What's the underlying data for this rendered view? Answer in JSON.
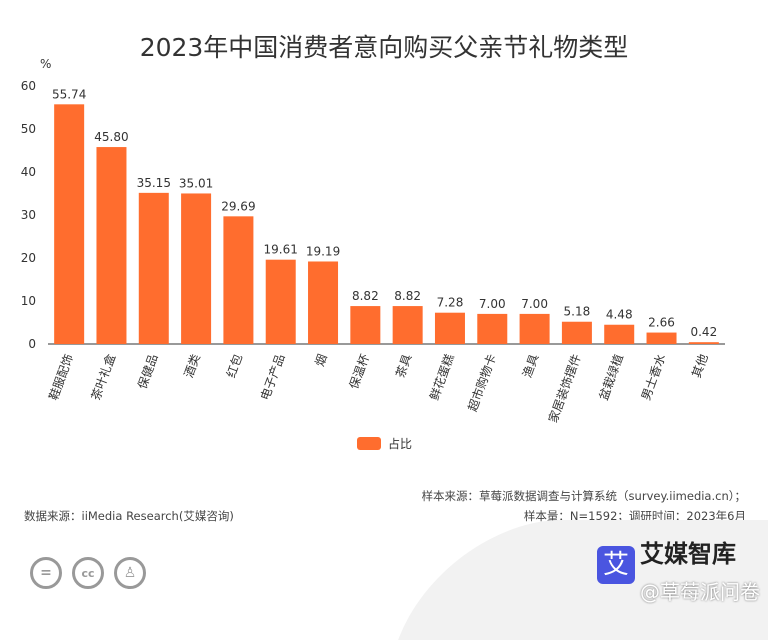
{
  "chart_data": {
    "type": "bar",
    "title": "2023年中国消费者意向购买父亲节礼物类型",
    "ylabel": "%",
    "ylim": [
      0,
      60
    ],
    "yticks": [
      0,
      10,
      20,
      30,
      40,
      50,
      60
    ],
    "categories": [
      "鞋服配饰",
      "茶叶礼盒",
      "保健品",
      "酒类",
      "红包",
      "电子产品",
      "烟",
      "保温杯",
      "茶具",
      "鲜花蛋糕",
      "超市购物卡",
      "渔具",
      "家居装饰摆件",
      "盆栽绿植",
      "男士香水",
      "其他"
    ],
    "series": [
      {
        "name": "占比",
        "values": [
          55.74,
          45.8,
          35.15,
          35.01,
          29.69,
          19.61,
          19.19,
          8.82,
          8.82,
          7.28,
          7.0,
          7.0,
          5.18,
          4.48,
          2.66,
          0.42
        ],
        "color": "#ff6d2e"
      }
    ],
    "value_labels": [
      "55.74",
      "45.80",
      "35.15",
      "35.01",
      "29.69",
      "19.61",
      "19.19",
      "8.82",
      "8.82",
      "7.28",
      "7.00",
      "7.00",
      "5.18",
      "4.48",
      "2.66",
      "0.42"
    ],
    "legend_position": "bottom",
    "grid": false
  },
  "footer": {
    "source": "数据来源：iiMedia Research(艾媒咨询)",
    "sample_source": "样本来源：草莓派数据调查与计算系统（survey.iimedia.cn）；",
    "sample_size": "样本量：N=1592；调研时间：2023年6月"
  },
  "logo": {
    "text": "艾媒智库",
    "mark": "艾",
    "watermark": "@草莓派问卷"
  },
  "license_icons": [
    "equals-icon",
    "cc-icon",
    "person-icon"
  ]
}
